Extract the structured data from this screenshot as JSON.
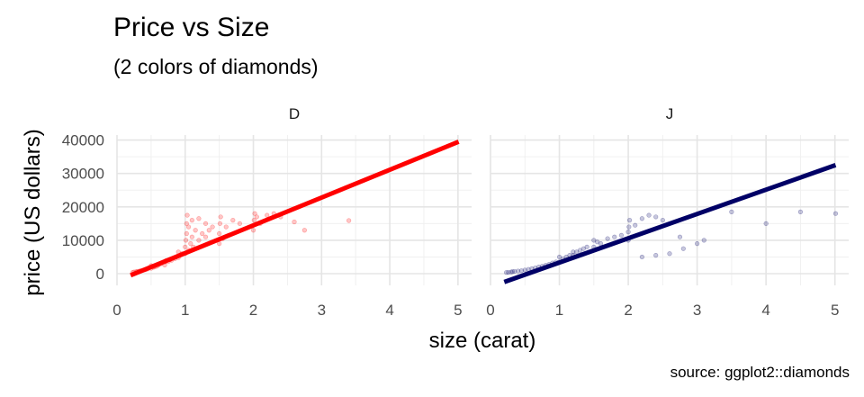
{
  "chart_data": {
    "type": "scatter",
    "title": "Price vs Size",
    "subtitle": "(2 colors of diamonds)",
    "xlabel": "size (carat)",
    "ylabel": "price (US dollars)",
    "caption": "source: ggplot2::diamonds",
    "xlim": [
      0,
      5.2
    ],
    "ylim": [
      -3500,
      41500
    ],
    "x_ticks": [
      0,
      1,
      2,
      3,
      4,
      5
    ],
    "y_ticks": [
      0,
      10000,
      20000,
      30000,
      40000
    ],
    "grid": true,
    "legend": "none",
    "panels": [
      {
        "name": "D",
        "color": "#ff0000",
        "points": [
          [
            0.23,
            400
          ],
          [
            0.25,
            500
          ],
          [
            0.28,
            600
          ],
          [
            0.3,
            700
          ],
          [
            0.31,
            500
          ],
          [
            0.33,
            800
          ],
          [
            0.35,
            900
          ],
          [
            0.38,
            1000
          ],
          [
            0.4,
            1100
          ],
          [
            0.42,
            1200
          ],
          [
            0.45,
            1400
          ],
          [
            0.5,
            1600
          ],
          [
            0.5,
            2400
          ],
          [
            0.53,
            1900
          ],
          [
            0.55,
            2000
          ],
          [
            0.58,
            2200
          ],
          [
            0.6,
            2500
          ],
          [
            0.62,
            2800
          ],
          [
            0.65,
            3000
          ],
          [
            0.7,
            2600
          ],
          [
            0.7,
            3500
          ],
          [
            0.72,
            4000
          ],
          [
            0.75,
            3600
          ],
          [
            0.78,
            4200
          ],
          [
            0.8,
            4000
          ],
          [
            0.85,
            4500
          ],
          [
            0.9,
            4800
          ],
          [
            0.9,
            6500
          ],
          [
            0.92,
            5500
          ],
          [
            0.95,
            6000
          ],
          [
            1.0,
            6000
          ],
          [
            1.0,
            8000
          ],
          [
            1.01,
            10000
          ],
          [
            1.02,
            12000
          ],
          [
            1.02,
            15000
          ],
          [
            1.03,
            17500
          ],
          [
            1.05,
            7000
          ],
          [
            1.05,
            14000
          ],
          [
            1.08,
            9000
          ],
          [
            1.1,
            11000
          ],
          [
            1.1,
            16000
          ],
          [
            1.12,
            8000
          ],
          [
            1.15,
            13000
          ],
          [
            1.2,
            10000
          ],
          [
            1.2,
            16500
          ],
          [
            1.25,
            12000
          ],
          [
            1.3,
            11000
          ],
          [
            1.3,
            15000
          ],
          [
            1.35,
            13000
          ],
          [
            1.4,
            14000
          ],
          [
            1.5,
            9000
          ],
          [
            1.5,
            12000
          ],
          [
            1.51,
            15000
          ],
          [
            1.52,
            17000
          ],
          [
            1.55,
            10500
          ],
          [
            1.6,
            14000
          ],
          [
            1.7,
            16000
          ],
          [
            1.8,
            15000
          ],
          [
            2.0,
            13000
          ],
          [
            2.01,
            16000
          ],
          [
            2.02,
            18000
          ],
          [
            2.05,
            17000
          ],
          [
            2.1,
            15000
          ],
          [
            2.2,
            17500
          ],
          [
            2.3,
            18000
          ],
          [
            2.4,
            17000
          ],
          [
            2.6,
            15500
          ],
          [
            2.75,
            13000
          ],
          [
            3.4,
            15900
          ]
        ],
        "fit": {
          "x": [
            0.2,
            5.01
          ],
          "y": [
            -500,
            39500
          ]
        }
      },
      {
        "name": "J",
        "color": "#000066",
        "points": [
          [
            0.23,
            350
          ],
          [
            0.26,
            400
          ],
          [
            0.3,
            500
          ],
          [
            0.32,
            600
          ],
          [
            0.35,
            700
          ],
          [
            0.4,
            800
          ],
          [
            0.45,
            900
          ],
          [
            0.5,
            1100
          ],
          [
            0.55,
            1300
          ],
          [
            0.6,
            1500
          ],
          [
            0.65,
            1700
          ],
          [
            0.7,
            2000
          ],
          [
            0.75,
            2200
          ],
          [
            0.8,
            2500
          ],
          [
            0.85,
            2800
          ],
          [
            0.9,
            3200
          ],
          [
            0.95,
            3500
          ],
          [
            1.0,
            3500
          ],
          [
            1.0,
            5000
          ],
          [
            1.05,
            4500
          ],
          [
            1.1,
            5000
          ],
          [
            1.15,
            5500
          ],
          [
            1.2,
            5500
          ],
          [
            1.2,
            6500
          ],
          [
            1.25,
            6500
          ],
          [
            1.3,
            7000
          ],
          [
            1.35,
            7500
          ],
          [
            1.4,
            8000
          ],
          [
            1.5,
            8000
          ],
          [
            1.5,
            10000
          ],
          [
            1.55,
            9500
          ],
          [
            1.6,
            9000
          ],
          [
            1.7,
            10500
          ],
          [
            1.8,
            11000
          ],
          [
            1.9,
            11500
          ],
          [
            2.0,
            10000
          ],
          [
            2.0,
            12500
          ],
          [
            2.01,
            14000
          ],
          [
            2.02,
            16000
          ],
          [
            2.05,
            11000
          ],
          [
            2.1,
            14500
          ],
          [
            2.2,
            16500
          ],
          [
            2.3,
            17500
          ],
          [
            2.4,
            17000
          ],
          [
            2.5,
            16000
          ],
          [
            2.2,
            5000
          ],
          [
            2.4,
            5500
          ],
          [
            2.6,
            6000
          ],
          [
            2.8,
            7500
          ],
          [
            3.0,
            9000
          ],
          [
            3.1,
            10000
          ],
          [
            2.75,
            11000
          ],
          [
            3.5,
            18500
          ],
          [
            4.0,
            15000
          ],
          [
            4.5,
            18500
          ],
          [
            5.01,
            18000
          ]
        ],
        "fit": {
          "x": [
            0.2,
            5.01
          ],
          "y": [
            -2500,
            32500
          ]
        }
      }
    ]
  }
}
